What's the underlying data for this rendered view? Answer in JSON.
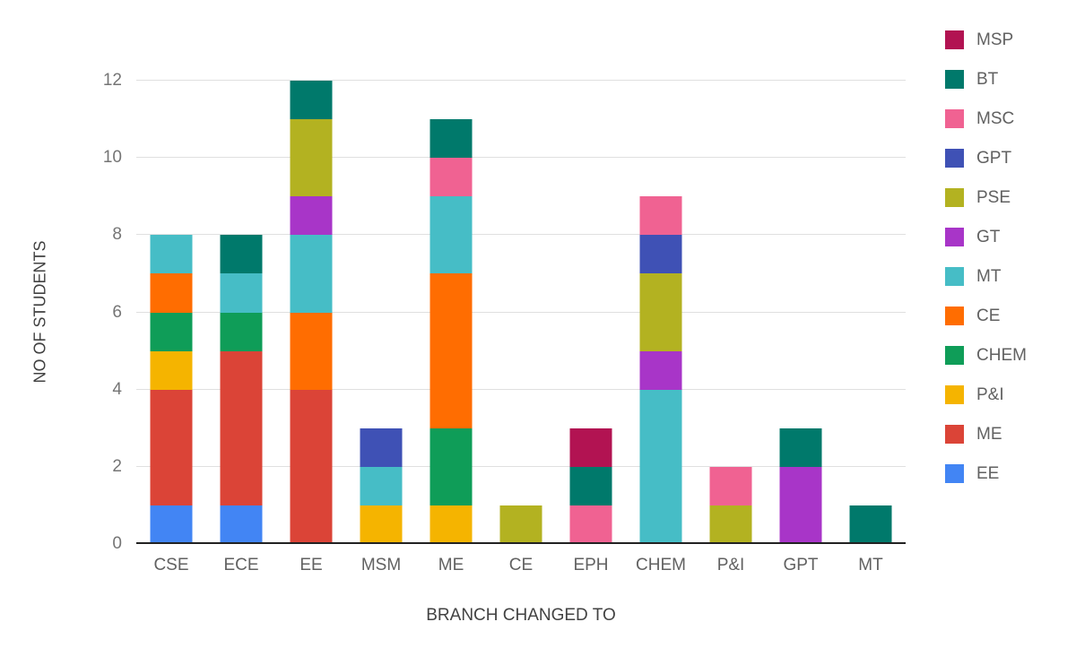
{
  "chart_data": {
    "type": "bar",
    "stacked": true,
    "xlabel": "BRANCH CHANGED TO",
    "ylabel": "NO OF STUDENTS",
    "ylim": [
      0,
      12
    ],
    "yticks": [
      0,
      2,
      4,
      6,
      8,
      10,
      12
    ],
    "grid": "horizontal",
    "legend_position": "right",
    "categories": [
      "CSE",
      "ECE",
      "EE",
      "MSM",
      "ME",
      "CE",
      "EPH",
      "CHEM",
      "P&I",
      "GPT",
      "MT"
    ],
    "series_order_note": "series listed in legend order = top-of-stack first; bars stack bottom-to-top in reverse of this list",
    "series": [
      {
        "name": "MSP",
        "color": "#B21352",
        "values": [
          0,
          0,
          0,
          0,
          0,
          0,
          1,
          0,
          0,
          0,
          0
        ]
      },
      {
        "name": "BT",
        "color": "#00796B",
        "values": [
          0,
          1,
          1,
          0,
          1,
          0,
          1,
          0,
          0,
          1,
          1
        ]
      },
      {
        "name": "MSC",
        "color": "#F06292",
        "values": [
          0,
          0,
          0,
          0,
          1,
          0,
          1,
          1,
          1,
          0,
          0
        ]
      },
      {
        "name": "GPT",
        "color": "#3F51B5",
        "values": [
          0,
          0,
          0,
          1,
          0,
          0,
          0,
          1,
          0,
          0,
          0
        ]
      },
      {
        "name": "PSE",
        "color": "#B3B221",
        "values": [
          0,
          0,
          2,
          0,
          0,
          1,
          0,
          2,
          1,
          0,
          0
        ]
      },
      {
        "name": "GT",
        "color": "#A835C8",
        "values": [
          0,
          0,
          1,
          0,
          0,
          0,
          0,
          1,
          0,
          2,
          0
        ]
      },
      {
        "name": "MT",
        "color": "#46BDC6",
        "values": [
          1,
          1,
          2,
          1,
          2,
          0,
          0,
          4,
          0,
          0,
          0
        ]
      },
      {
        "name": "CE",
        "color": "#FF6D01",
        "values": [
          1,
          0,
          2,
          0,
          4,
          0,
          0,
          0,
          0,
          0,
          0
        ]
      },
      {
        "name": "CHEM",
        "color": "#0F9D58",
        "values": [
          1,
          1,
          0,
          0,
          2,
          0,
          0,
          0,
          0,
          0,
          0
        ]
      },
      {
        "name": "P&I",
        "color": "#F5B400",
        "values": [
          1,
          0,
          0,
          1,
          1,
          0,
          0,
          0,
          0,
          0,
          0
        ]
      },
      {
        "name": "ME",
        "color": "#DB4437",
        "values": [
          3,
          4,
          4,
          0,
          0,
          0,
          0,
          0,
          0,
          0,
          0
        ]
      },
      {
        "name": "EE",
        "color": "#4285F4",
        "values": [
          1,
          1,
          0,
          0,
          0,
          0,
          0,
          0,
          0,
          0,
          0
        ]
      }
    ],
    "totals": {
      "CSE": 8,
      "ECE": 8,
      "EE": 12,
      "MSM": 3,
      "ME": 11,
      "CE": 1,
      "EPH": 3,
      "CHEM": 9,
      "P&I": 2,
      "GPT": 3,
      "MT": 1
    }
  }
}
